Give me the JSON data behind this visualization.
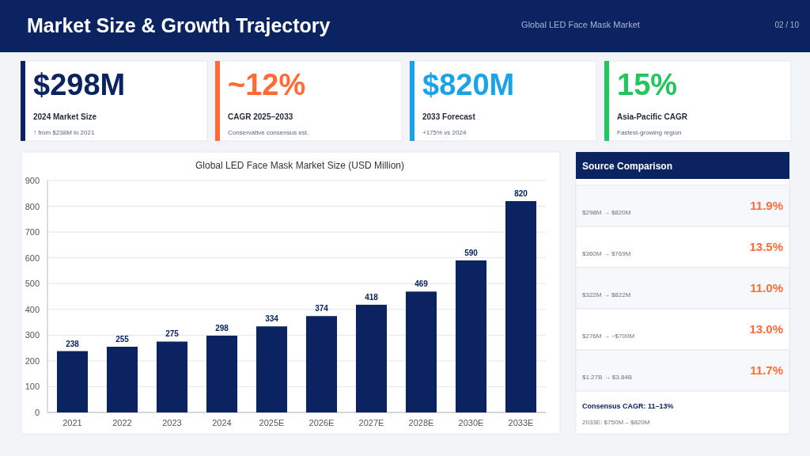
{
  "chart_data": [
    {
      "type": "other",
      "title": "Market Size & Growth Trajectory",
      "subtitle": "Global LED Face Mask Market",
      "categories": [
        "$298M",
        "~12%",
        "$820M",
        "15%"
      ],
      "annotations": [
        "02 / 10",
        "2024 Market Size",
        "↑ from $238M in 2021",
        "CAGR 2025–2033",
        "Conservative consensus est.",
        "2033 Forecast",
        "+175% vs 2024",
        "Asia-Pacific CAGR",
        "Fastest-growing region"
      ]
    },
    {
      "type": "bar",
      "title": "Global LED Face Mask Market Size (USD Million)",
      "categories": [
        "2021",
        "2022",
        "2023",
        "2024",
        "2025E",
        "2026E",
        "2027E",
        "2028E",
        "2030E",
        "2033E"
      ],
      "values": [
        238,
        255,
        275,
        298,
        334,
        374,
        418,
        469,
        590,
        820
      ],
      "color": "#0b2361",
      "ylim": [
        0,
        900
      ],
      "yticks": [
        0,
        100,
        200,
        300,
        400,
        500,
        600,
        700,
        800,
        900
      ],
      "grid": "y",
      "data_labels": true
    },
    {
      "type": "other",
      "title": "Source Comparison",
      "categories": [
        null,
        null,
        null,
        null,
        null
      ],
      "values": [
        11.9,
        13.5,
        11.0,
        13.0,
        11.7
      ],
      "value_labels": [
        "11.9%",
        "13.5%",
        "11.0%",
        "13.0%",
        "11.7%"
      ],
      "color": "#ff6b35",
      "annotations": [
        "$298M → $820M",
        "$360M → $769M",
        "$322M → $822M",
        "$276M → ~$700M",
        "$1.27B → $3.84B",
        "Consensus CAGR: 11–13%",
        "2033E: $750M – $820M"
      ]
    }
  ]
}
